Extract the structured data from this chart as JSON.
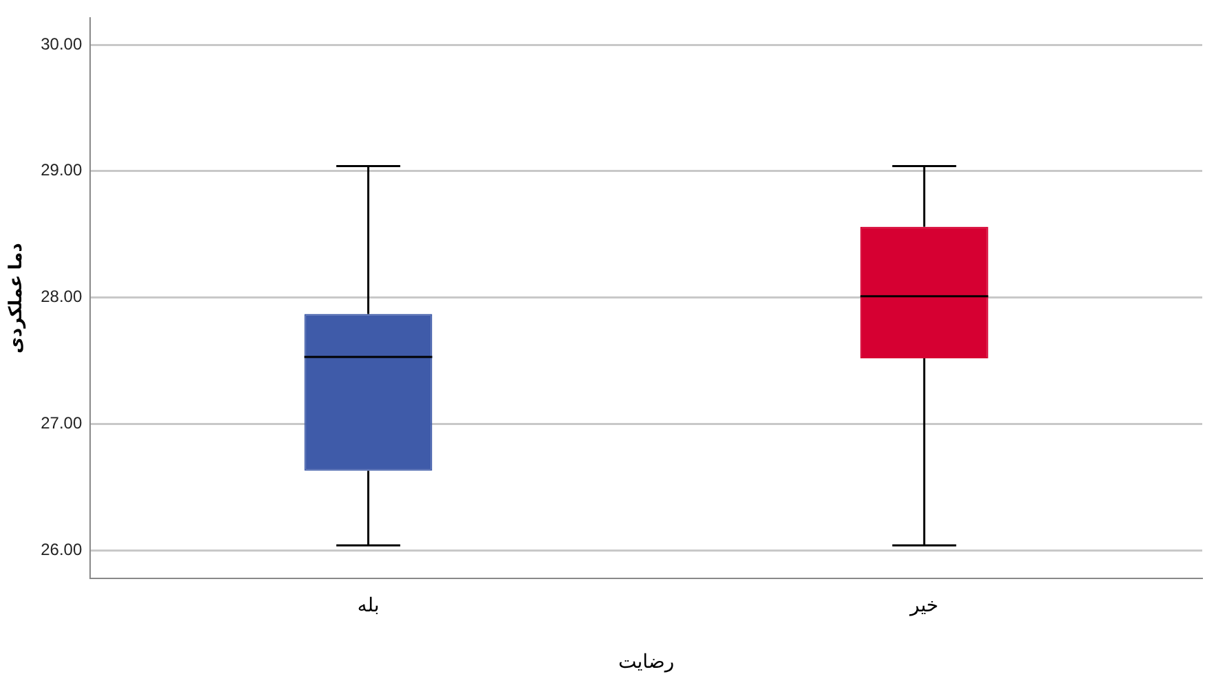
{
  "chart_data": {
    "type": "box",
    "xlabel": "رضایت",
    "ylabel": "دما عملکردی",
    "categories": [
      "بله",
      "خیر"
    ],
    "boxes": [
      {
        "low": 26.04,
        "q1": 26.63,
        "median": 27.53,
        "q3": 27.87,
        "high": 29.04
      },
      {
        "low": 26.04,
        "q1": 27.52,
        "median": 28.01,
        "q3": 28.56,
        "high": 29.04
      }
    ],
    "colors": [
      "#3f5ba9",
      "#d60032"
    ],
    "ylim": [
      25.78,
      30.21
    ],
    "yticks": [
      {
        "value": 26,
        "label": "26.00"
      },
      {
        "value": 27,
        "label": "27.00"
      },
      {
        "value": 28,
        "label": "28.00"
      },
      {
        "value": 29,
        "label": "29.00"
      },
      {
        "value": 30,
        "label": "30.00"
      }
    ],
    "grid": "y",
    "legend": false
  }
}
